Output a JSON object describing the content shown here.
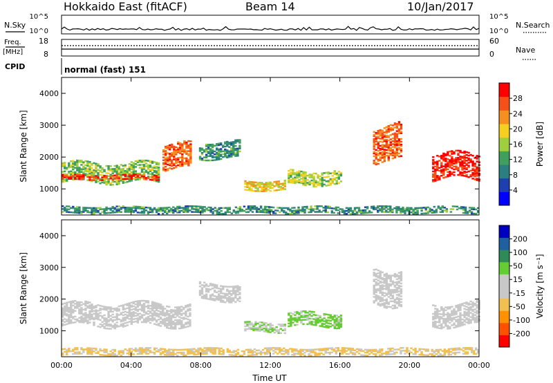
{
  "header": {
    "title_left": "Hokkaido East (fitACF)",
    "title_center": "Beam 14",
    "title_right": "10/Jan/2017"
  },
  "top_panels": {
    "nsky_label": "N.Sky",
    "nsearch_label": "N.Search",
    "noise_ticks": [
      "10^5",
      "10^0"
    ],
    "freq_label": "Freq.",
    "freq_unit": "[MHz]",
    "freq_ticks": [
      "18",
      "8"
    ],
    "nave_label": "Nave",
    "nave_ticks": [
      "60",
      "0"
    ],
    "cpid_label": "CPID",
    "cpid_value": "normal (fast) 151"
  },
  "colors": {
    "power": [
      "#0000ff",
      "#1e3fb0",
      "#2c7f7f",
      "#3f9f5f",
      "#9fcf3f",
      "#f5d020",
      "#f59020",
      "#f55018",
      "#ff0000"
    ],
    "velocity": [
      "#ff0000",
      "#ff5000",
      "#ff9000",
      "#f2c050",
      "#c8c8c8",
      "#c8c8c8",
      "#66cc33",
      "#2e8b57",
      "#2060a0",
      "#0000c0"
    ]
  },
  "chart_data": [
    {
      "type": "heatmap",
      "name": "power",
      "xlabel": "",
      "ylabel": "Slant Range [km]",
      "x_ticks": [
        "00:00",
        "04:00",
        "08:00",
        "12:00",
        "16:00",
        "20:00",
        "00:00"
      ],
      "xlim_hours": [
        0,
        24
      ],
      "ylim_km": [
        180,
        4500
      ],
      "y_ticks": [
        1000,
        2000,
        3000,
        4000
      ],
      "colorbar_label": "Power [dB]",
      "colorbar_ticks": [
        4,
        8,
        12,
        16,
        20,
        24,
        28
      ],
      "colorbar_range": [
        0,
        30
      ],
      "features": [
        {
          "t0": 0.0,
          "t1": 5.6,
          "r_center": 1500,
          "r_width": 600,
          "value": 14
        },
        {
          "t0": 0.0,
          "t1": 5.6,
          "r_center": 1350,
          "r_width": 150,
          "value": 26
        },
        {
          "t0": 5.8,
          "t1": 7.4,
          "r_center": 2000,
          "r_width": 800,
          "value": 24
        },
        {
          "t0": 7.9,
          "t1": 10.2,
          "r_center": 2200,
          "r_width": 500,
          "value": 10
        },
        {
          "t0": 10.5,
          "t1": 12.8,
          "r_center": 1100,
          "r_width": 300,
          "value": 18
        },
        {
          "t0": 13.0,
          "t1": 16.0,
          "r_center": 1350,
          "r_width": 450,
          "value": 16
        },
        {
          "t0": 17.9,
          "t1": 19.5,
          "r_center": 2400,
          "r_width": 1100,
          "value": 24
        },
        {
          "t0": 21.3,
          "t1": 24.0,
          "r_center": 1700,
          "r_width": 800,
          "value": 28
        },
        {
          "t0": 0.0,
          "t1": 24.0,
          "r_center": 330,
          "r_width": 200,
          "value": 10
        }
      ]
    },
    {
      "type": "heatmap",
      "name": "velocity",
      "xlabel": "Time UT",
      "ylabel": "Slant Range [km]",
      "x_ticks": [
        "00:00",
        "04:00",
        "08:00",
        "12:00",
        "16:00",
        "20:00",
        "00:00"
      ],
      "xlim_hours": [
        0,
        24
      ],
      "ylim_km": [
        180,
        4500
      ],
      "y_ticks": [
        1000,
        2000,
        3000,
        4000
      ],
      "colorbar_label": "Velocity [m s⁻¹]",
      "colorbar_ticks": [
        "-200",
        "-100",
        "-50",
        "-15",
        "15",
        "50",
        "100",
        "200"
      ],
      "colorbar_range": [
        -250,
        250
      ],
      "features": [
        {
          "t0": 0.0,
          "t1": 7.4,
          "r_center": 1500,
          "r_width": 700,
          "value": 0
        },
        {
          "t0": 7.9,
          "t1": 10.2,
          "r_center": 2200,
          "r_width": 500,
          "value": -10
        },
        {
          "t0": 10.5,
          "t1": 12.8,
          "r_center": 1100,
          "r_width": 300,
          "value": 40
        },
        {
          "t0": 13.0,
          "t1": 16.0,
          "r_center": 1350,
          "r_width": 450,
          "value": 70
        },
        {
          "t0": 17.9,
          "t1": 19.5,
          "r_center": 2400,
          "r_width": 1100,
          "value": 0
        },
        {
          "t0": 21.3,
          "t1": 24.0,
          "r_center": 1500,
          "r_width": 700,
          "value": 0
        },
        {
          "t0": 0.0,
          "t1": 24.0,
          "r_center": 330,
          "r_width": 200,
          "value": -60
        }
      ]
    }
  ]
}
